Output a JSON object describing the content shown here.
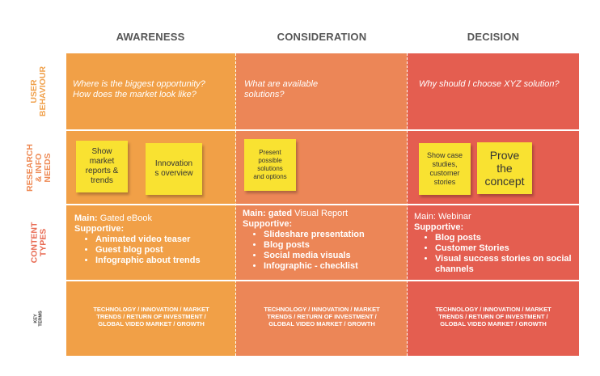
{
  "stages": [
    "AWARENESS",
    "CONSIDERATION",
    "DECISION"
  ],
  "rows": {
    "user_behaviour": "USER\nBEHAVIOUR",
    "research": "RESEARCH\n& INFO\nNEEDS",
    "content_types": "CONTENT\nTYPES",
    "key_terms": "KEY\nTERMS"
  },
  "user_behaviour": [
    "Where is the biggest opportunity? How does the market look like?",
    "What are available solutions?",
    "Why should I choose XYZ solution?"
  ],
  "notes": {
    "awareness_1": "Show\nmarket\nreports &\ntrends",
    "awareness_2": "Innovation\ns overview",
    "consideration_1": "Present\npossible\nsolutions\nand options",
    "decision_1": "Show case\nstudies,\ncustomer\nstories",
    "decision_2": "Prove\nthe\nconcept"
  },
  "content": {
    "awareness": {
      "main_label": "Main:",
      "main_value": " Gated eBook",
      "supportive": "Supportive:",
      "items": [
        "Animated video teaser",
        "Guest blog post",
        "Infographic about trends"
      ]
    },
    "consideration": {
      "main_label": "Main:  gated",
      "main_value": " Visual Report",
      "supportive": "Supportive:",
      "items": [
        "Slideshare presentation",
        "Blog posts",
        "Social media visuals",
        "Infographic - checklist"
      ]
    },
    "decision": {
      "main_label": "",
      "main_value": "Main: Webinar",
      "supportive": "Supportive:",
      "items": [
        "Blog posts",
        "Customer Stories",
        "Visual success stories on social channels"
      ]
    }
  },
  "key_terms": "TECHNOLOGY / INNOVATION / MARKET\nTRENDS / RETURN OF INVESTMENT /\nGLOBAL VIDEO MARKET / GROWTH",
  "colors": {
    "awareness": "#f1a047",
    "consideration": "#ec8657",
    "decision": "#e45e50",
    "row_label": "#f0874a",
    "note": "#f9e231"
  }
}
